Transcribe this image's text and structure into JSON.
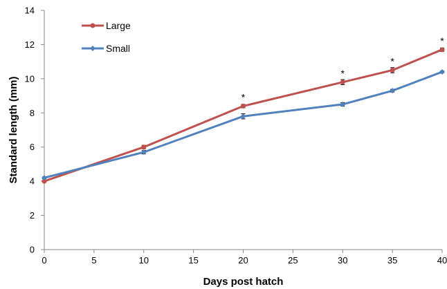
{
  "chart_data": {
    "type": "line",
    "title": "",
    "xlabel": "Days post  hatch",
    "ylabel": "Standard length (mm)",
    "xlim": [
      0,
      40
    ],
    "ylim": [
      0,
      14
    ],
    "xticks": [
      0,
      5,
      10,
      15,
      20,
      25,
      30,
      35,
      40
    ],
    "yticks": [
      0,
      2,
      4,
      6,
      8,
      10,
      12,
      14
    ],
    "grid": false,
    "legend_position": "top-left",
    "series": [
      {
        "name": "Large",
        "color": "#c0504d",
        "marker": "circle",
        "x": [
          0,
          10,
          20,
          30,
          35,
          40
        ],
        "y": [
          4.0,
          6.0,
          8.4,
          9.8,
          10.5,
          11.7
        ],
        "error": [
          0.05,
          0.1,
          0.1,
          0.15,
          0.15,
          0.1
        ]
      },
      {
        "name": "Small",
        "color": "#4f81bd",
        "marker": "diamond",
        "x": [
          0,
          10,
          20,
          30,
          35,
          40
        ],
        "y": [
          4.2,
          5.7,
          7.8,
          8.5,
          9.3,
          10.4
        ],
        "error": [
          0.05,
          0.1,
          0.15,
          0.1,
          0.08,
          0.05
        ]
      }
    ],
    "annotations": [
      {
        "x": 20,
        "text": "*"
      },
      {
        "x": 30,
        "text": "*"
      },
      {
        "x": 35,
        "text": "*"
      },
      {
        "x": 40,
        "text": "*"
      }
    ]
  }
}
